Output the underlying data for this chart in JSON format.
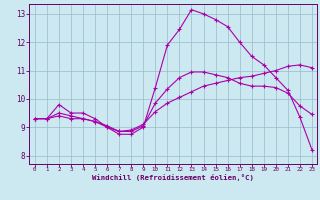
{
  "title": "",
  "xlabel": "Windchill (Refroidissement éolien,°C)",
  "ylabel": "",
  "bg_color": "#cce8f0",
  "line_color": "#aa00aa",
  "grid_color": "#99bbcc",
  "axis_color": "#660066",
  "xmin": -0.5,
  "xmax": 23.4,
  "ymin": 7.7,
  "ymax": 13.35,
  "xticks": [
    0,
    1,
    2,
    3,
    4,
    5,
    6,
    7,
    8,
    9,
    10,
    11,
    12,
    13,
    14,
    15,
    16,
    17,
    18,
    19,
    20,
    21,
    22,
    23
  ],
  "yticks": [
    8,
    9,
    10,
    11,
    12,
    13
  ],
  "line1_x": [
    0,
    1,
    2,
    3,
    4,
    5,
    6,
    7,
    8,
    9,
    10,
    11,
    12,
    13,
    14,
    15,
    16,
    17,
    18,
    19,
    20,
    21,
    22,
    23
  ],
  "line1_y": [
    9.3,
    9.3,
    9.8,
    9.5,
    9.5,
    9.3,
    9.0,
    8.75,
    8.75,
    9.0,
    10.4,
    11.9,
    12.45,
    13.15,
    13.0,
    12.8,
    12.55,
    12.0,
    11.5,
    11.2,
    10.75,
    10.3,
    9.35,
    8.2
  ],
  "line2_x": [
    0,
    1,
    2,
    3,
    4,
    5,
    6,
    7,
    8,
    9,
    10,
    11,
    12,
    13,
    14,
    15,
    16,
    17,
    18,
    19,
    20,
    21,
    22,
    23
  ],
  "line2_y": [
    9.3,
    9.3,
    9.5,
    9.4,
    9.3,
    9.2,
    9.0,
    8.85,
    8.85,
    9.05,
    9.85,
    10.35,
    10.75,
    10.95,
    10.95,
    10.85,
    10.75,
    10.55,
    10.45,
    10.45,
    10.4,
    10.2,
    9.75,
    9.45
  ],
  "line3_x": [
    0,
    1,
    2,
    3,
    4,
    5,
    6,
    7,
    8,
    9,
    10,
    11,
    12,
    13,
    14,
    15,
    16,
    17,
    18,
    19,
    20,
    21,
    22,
    23
  ],
  "line3_y": [
    9.3,
    9.3,
    9.4,
    9.3,
    9.3,
    9.2,
    9.05,
    8.85,
    8.9,
    9.1,
    9.55,
    9.85,
    10.05,
    10.25,
    10.45,
    10.55,
    10.65,
    10.75,
    10.8,
    10.9,
    11.0,
    11.15,
    11.2,
    11.1
  ]
}
